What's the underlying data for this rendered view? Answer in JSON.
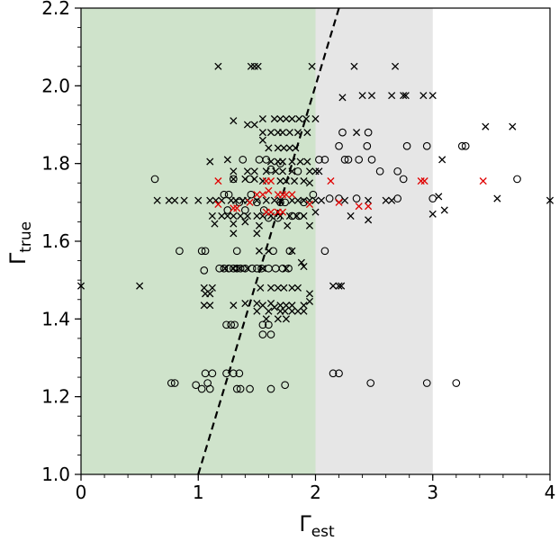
{
  "chart_data": {
    "type": "scatter",
    "xlabel": "Γ",
    "xlabel_sub": "est",
    "ylabel": "Γ",
    "ylabel_sub": "true",
    "xlim": [
      0,
      4
    ],
    "ylim": [
      1.0,
      2.2
    ],
    "x_ticks": [
      "0",
      "1",
      "2",
      "3",
      "4"
    ],
    "y_ticks": [
      "1.0",
      "1.2",
      "1.4",
      "1.6",
      "1.8",
      "2.0",
      "2.2"
    ],
    "grid": false,
    "colors": {
      "green_region": "#cfe3cb",
      "gray_region": "#e6e6e6",
      "marker_black": "#000000",
      "marker_red": "#e00000",
      "reference_line": "#000000"
    },
    "regions": [
      {
        "name": "green",
        "x0": 0,
        "x1": 2
      },
      {
        "name": "gray",
        "x0": 2,
        "x1": 3
      }
    ],
    "reference_line": {
      "style": "dashed",
      "points": [
        [
          1.0,
          1.0
        ],
        [
          2.2,
          2.2
        ]
      ]
    },
    "series": [
      {
        "marker": "circle",
        "color": "black",
        "points": [
          [
            0.77,
            1.235
          ],
          [
            0.8,
            1.235
          ],
          [
            0.98,
            1.23
          ],
          [
            1.03,
            1.22
          ],
          [
            1.08,
            1.235
          ],
          [
            1.1,
            1.22
          ],
          [
            1.06,
            1.26
          ],
          [
            1.12,
            1.26
          ],
          [
            1.24,
            1.26
          ],
          [
            1.3,
            1.26
          ],
          [
            1.35,
            1.26
          ],
          [
            1.33,
            1.22
          ],
          [
            1.36,
            1.22
          ],
          [
            1.44,
            1.22
          ],
          [
            1.62,
            1.22
          ],
          [
            1.74,
            1.23
          ],
          [
            2.15,
            1.26
          ],
          [
            2.2,
            1.26
          ],
          [
            2.47,
            1.235
          ],
          [
            2.95,
            1.235
          ],
          [
            3.2,
            1.235
          ],
          [
            1.24,
            1.385
          ],
          [
            1.28,
            1.385
          ],
          [
            1.31,
            1.385
          ],
          [
            1.55,
            1.385
          ],
          [
            1.6,
            1.385
          ],
          [
            1.55,
            1.36
          ],
          [
            1.62,
            1.36
          ],
          [
            1.05,
            1.525
          ],
          [
            1.18,
            1.53
          ],
          [
            1.22,
            1.53
          ],
          [
            1.26,
            1.53
          ],
          [
            1.3,
            1.53
          ],
          [
            1.33,
            1.53
          ],
          [
            1.36,
            1.53
          ],
          [
            1.4,
            1.53
          ],
          [
            1.46,
            1.53
          ],
          [
            1.5,
            1.53
          ],
          [
            1.54,
            1.53
          ],
          [
            1.6,
            1.53
          ],
          [
            1.66,
            1.53
          ],
          [
            1.72,
            1.53
          ],
          [
            1.77,
            1.53
          ],
          [
            0.84,
            1.575
          ],
          [
            1.03,
            1.575
          ],
          [
            1.06,
            1.575
          ],
          [
            1.33,
            1.575
          ],
          [
            1.64,
            1.575
          ],
          [
            1.78,
            1.575
          ],
          [
            2.08,
            1.575
          ],
          [
            0.63,
            1.76
          ],
          [
            1.38,
            1.81
          ],
          [
            1.52,
            1.81
          ],
          [
            1.58,
            1.81
          ],
          [
            1.62,
            1.785
          ],
          [
            1.7,
            1.8
          ],
          [
            2.03,
            1.81
          ],
          [
            2.08,
            1.81
          ],
          [
            2.25,
            1.81
          ],
          [
            2.28,
            1.81
          ],
          [
            2.37,
            1.81
          ],
          [
            2.48,
            1.81
          ],
          [
            2.2,
            1.845
          ],
          [
            2.44,
            1.845
          ],
          [
            2.78,
            1.845
          ],
          [
            2.95,
            1.845
          ],
          [
            3.25,
            1.845
          ],
          [
            3.28,
            1.845
          ],
          [
            2.23,
            1.88
          ],
          [
            2.45,
            1.88
          ],
          [
            2.55,
            1.78
          ],
          [
            2.7,
            1.78
          ],
          [
            2.75,
            1.76
          ],
          [
            3.72,
            1.76
          ],
          [
            2.12,
            1.71
          ],
          [
            2.2,
            1.71
          ],
          [
            2.35,
            1.71
          ],
          [
            2.7,
            1.71
          ],
          [
            3.0,
            1.71
          ],
          [
            1.98,
            1.72
          ],
          [
            1.8,
            1.665
          ],
          [
            1.86,
            1.665
          ],
          [
            1.22,
            1.72
          ],
          [
            1.26,
            1.72
          ],
          [
            1.35,
            1.7
          ],
          [
            1.45,
            1.72
          ],
          [
            1.5,
            1.7
          ],
          [
            1.56,
            1.68
          ],
          [
            1.7,
            1.7
          ],
          [
            1.74,
            1.7
          ],
          [
            1.25,
            1.68
          ],
          [
            1.4,
            1.68
          ],
          [
            1.6,
            1.66
          ],
          [
            1.68,
            1.66
          ],
          [
            1.9,
            1.7
          ],
          [
            1.85,
            1.78
          ],
          [
            1.3,
            1.76
          ],
          [
            1.44,
            1.76
          ]
        ]
      },
      {
        "marker": "x",
        "color": "black",
        "points": [
          [
            1.17,
            2.05
          ],
          [
            1.45,
            2.05
          ],
          [
            1.48,
            2.05
          ],
          [
            1.51,
            2.05
          ],
          [
            1.97,
            2.05
          ],
          [
            2.33,
            2.05
          ],
          [
            2.68,
            2.05
          ],
          [
            2.4,
            1.975
          ],
          [
            2.48,
            1.975
          ],
          [
            2.65,
            1.975
          ],
          [
            2.75,
            1.975
          ],
          [
            2.77,
            1.975
          ],
          [
            2.92,
            1.975
          ],
          [
            3.0,
            1.975
          ],
          [
            2.23,
            1.97
          ],
          [
            1.55,
            1.915
          ],
          [
            1.65,
            1.915
          ],
          [
            1.7,
            1.915
          ],
          [
            1.75,
            1.915
          ],
          [
            1.8,
            1.915
          ],
          [
            1.86,
            1.915
          ],
          [
            1.92,
            1.915
          ],
          [
            2.0,
            1.915
          ],
          [
            1.3,
            1.91
          ],
          [
            1.42,
            1.9
          ],
          [
            1.48,
            1.9
          ],
          [
            1.55,
            1.88
          ],
          [
            1.62,
            1.88
          ],
          [
            1.68,
            1.88
          ],
          [
            1.72,
            1.88
          ],
          [
            1.78,
            1.88
          ],
          [
            1.85,
            1.88
          ],
          [
            1.93,
            1.88
          ],
          [
            2.35,
            1.88
          ],
          [
            3.45,
            1.895
          ],
          [
            3.68,
            1.895
          ],
          [
            1.55,
            1.86
          ],
          [
            1.6,
            1.84
          ],
          [
            1.68,
            1.84
          ],
          [
            1.73,
            1.84
          ],
          [
            1.78,
            1.84
          ],
          [
            1.83,
            1.84
          ],
          [
            1.62,
            1.805
          ],
          [
            1.68,
            1.805
          ],
          [
            1.72,
            1.805
          ],
          [
            1.8,
            1.805
          ],
          [
            1.87,
            1.805
          ],
          [
            1.93,
            1.805
          ],
          [
            1.1,
            1.805
          ],
          [
            1.25,
            1.81
          ],
          [
            1.3,
            1.78
          ],
          [
            1.42,
            1.78
          ],
          [
            1.48,
            1.78
          ],
          [
            1.58,
            1.78
          ],
          [
            1.66,
            1.78
          ],
          [
            1.72,
            1.78
          ],
          [
            1.8,
            1.78
          ],
          [
            1.95,
            1.78
          ],
          [
            2.0,
            1.78
          ],
          [
            3.08,
            1.81
          ],
          [
            1.3,
            1.76
          ],
          [
            1.4,
            1.76
          ],
          [
            1.48,
            1.76
          ],
          [
            1.55,
            1.755
          ],
          [
            1.7,
            1.755
          ],
          [
            1.75,
            1.755
          ],
          [
            1.82,
            1.755
          ],
          [
            1.9,
            1.755
          ],
          [
            1.95,
            1.75
          ],
          [
            2.03,
            1.78
          ],
          [
            0.65,
            1.705
          ],
          [
            0.75,
            1.705
          ],
          [
            0.8,
            1.705
          ],
          [
            0.88,
            1.705
          ],
          [
            1.0,
            1.705
          ],
          [
            1.1,
            1.705
          ],
          [
            1.15,
            1.705
          ],
          [
            1.2,
            1.705
          ],
          [
            1.28,
            1.705
          ],
          [
            1.32,
            1.705
          ],
          [
            1.38,
            1.705
          ],
          [
            1.42,
            1.705
          ],
          [
            1.5,
            1.705
          ],
          [
            1.58,
            1.705
          ],
          [
            1.65,
            1.705
          ],
          [
            1.7,
            1.705
          ],
          [
            1.8,
            1.705
          ],
          [
            1.85,
            1.705
          ],
          [
            1.9,
            1.705
          ],
          [
            1.95,
            1.705
          ],
          [
            2.0,
            1.705
          ],
          [
            2.05,
            1.705
          ],
          [
            2.25,
            1.705
          ],
          [
            2.45,
            1.705
          ],
          [
            2.6,
            1.705
          ],
          [
            2.65,
            1.705
          ],
          [
            3.05,
            1.715
          ],
          [
            3.55,
            1.71
          ],
          [
            4.0,
            1.705
          ],
          [
            1.12,
            1.665
          ],
          [
            1.2,
            1.665
          ],
          [
            1.25,
            1.665
          ],
          [
            1.3,
            1.665
          ],
          [
            1.36,
            1.665
          ],
          [
            1.42,
            1.665
          ],
          [
            1.5,
            1.665
          ],
          [
            1.55,
            1.665
          ],
          [
            1.62,
            1.665
          ],
          [
            1.7,
            1.665
          ],
          [
            1.78,
            1.665
          ],
          [
            1.84,
            1.665
          ],
          [
            1.9,
            1.665
          ],
          [
            2.0,
            1.675
          ],
          [
            2.3,
            1.665
          ],
          [
            2.45,
            1.655
          ],
          [
            3.1,
            1.68
          ],
          [
            3.0,
            1.67
          ],
          [
            1.14,
            1.645
          ],
          [
            1.3,
            1.645
          ],
          [
            1.4,
            1.65
          ],
          [
            1.52,
            1.64
          ],
          [
            1.76,
            1.64
          ],
          [
            1.95,
            1.64
          ],
          [
            1.3,
            1.62
          ],
          [
            1.5,
            1.62
          ],
          [
            1.52,
            1.575
          ],
          [
            1.6,
            1.575
          ],
          [
            1.8,
            1.575
          ],
          [
            1.88,
            1.545
          ],
          [
            1.9,
            1.535
          ],
          [
            1.23,
            1.53
          ],
          [
            1.3,
            1.53
          ],
          [
            1.35,
            1.53
          ],
          [
            1.42,
            1.53
          ],
          [
            1.55,
            1.53
          ],
          [
            1.75,
            1.53
          ],
          [
            0.0,
            1.485
          ],
          [
            0.5,
            1.485
          ],
          [
            1.05,
            1.48
          ],
          [
            1.12,
            1.48
          ],
          [
            1.53,
            1.48
          ],
          [
            1.62,
            1.48
          ],
          [
            1.68,
            1.48
          ],
          [
            1.73,
            1.48
          ],
          [
            1.8,
            1.48
          ],
          [
            1.85,
            1.48
          ],
          [
            2.15,
            1.485
          ],
          [
            2.2,
            1.485
          ],
          [
            2.22,
            1.485
          ],
          [
            1.06,
            1.465
          ],
          [
            1.1,
            1.465
          ],
          [
            1.95,
            1.465
          ],
          [
            1.05,
            1.435
          ],
          [
            1.1,
            1.435
          ],
          [
            1.3,
            1.435
          ],
          [
            1.4,
            1.44
          ],
          [
            1.5,
            1.44
          ],
          [
            1.55,
            1.435
          ],
          [
            1.62,
            1.44
          ],
          [
            1.7,
            1.435
          ],
          [
            1.75,
            1.435
          ],
          [
            1.8,
            1.435
          ],
          [
            1.9,
            1.435
          ],
          [
            1.95,
            1.445
          ],
          [
            1.5,
            1.42
          ],
          [
            1.6,
            1.42
          ],
          [
            1.7,
            1.42
          ],
          [
            1.74,
            1.42
          ],
          [
            1.8,
            1.42
          ],
          [
            1.85,
            1.42
          ],
          [
            1.9,
            1.42
          ],
          [
            1.58,
            1.4
          ],
          [
            1.68,
            1.4
          ],
          [
            1.75,
            1.4
          ],
          [
            1.65,
            1.43
          ]
        ]
      },
      {
        "marker": "x",
        "color": "red",
        "points": [
          [
            1.17,
            1.755
          ],
          [
            1.17,
            1.695
          ],
          [
            1.3,
            1.685
          ],
          [
            1.33,
            1.685
          ],
          [
            1.44,
            1.7
          ],
          [
            1.5,
            1.72
          ],
          [
            1.55,
            1.72
          ],
          [
            1.58,
            1.755
          ],
          [
            1.62,
            1.755
          ],
          [
            1.6,
            1.73
          ],
          [
            1.68,
            1.72
          ],
          [
            1.72,
            1.72
          ],
          [
            1.75,
            1.72
          ],
          [
            1.8,
            1.72
          ],
          [
            1.58,
            1.675
          ],
          [
            1.62,
            1.675
          ],
          [
            1.68,
            1.675
          ],
          [
            1.72,
            1.675
          ],
          [
            1.95,
            1.695
          ],
          [
            2.13,
            1.755
          ],
          [
            2.2,
            1.7
          ],
          [
            2.37,
            1.69
          ],
          [
            2.45,
            1.69
          ],
          [
            2.9,
            1.755
          ],
          [
            2.93,
            1.755
          ],
          [
            3.43,
            1.755
          ]
        ]
      }
    ]
  }
}
